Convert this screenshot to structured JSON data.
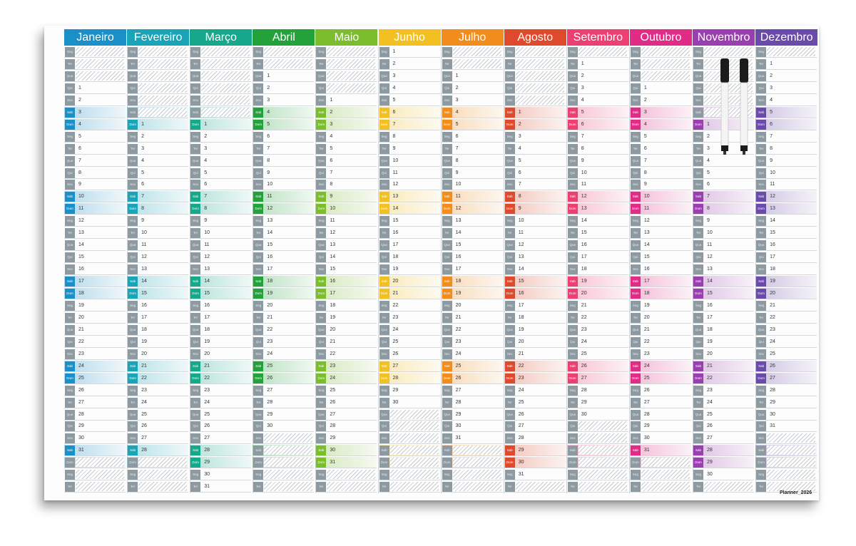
{
  "months": [
    {
      "name": "Janeiro",
      "color": "#1a8fc8",
      "first_wd": 3,
      "days": 31
    },
    {
      "name": "Fevereiro",
      "color": "#1aa4b8",
      "first_wd": 6,
      "days": 28
    },
    {
      "name": "Março",
      "color": "#16a88a",
      "first_wd": 6,
      "days": 31
    },
    {
      "name": "Abril",
      "color": "#23a23c",
      "first_wd": 2,
      "days": 30
    },
    {
      "name": "Maio",
      "color": "#7cbd2e",
      "first_wd": 4,
      "days": 31
    },
    {
      "name": "Junho",
      "color": "#f2c020",
      "first_wd": 0,
      "days": 30
    },
    {
      "name": "Julho",
      "color": "#f28c1a",
      "first_wd": 2,
      "days": 31
    },
    {
      "name": "Agosto",
      "color": "#e04a2c",
      "first_wd": 5,
      "days": 31
    },
    {
      "name": "Setembro",
      "color": "#ee3f72",
      "first_wd": 1,
      "days": 30
    },
    {
      "name": "Outubro",
      "color": "#e02c86",
      "first_wd": 3,
      "days": 31
    },
    {
      "name": "Novembro",
      "color": "#9a3fb0",
      "first_wd": 6,
      "days": 30
    },
    {
      "name": "Dezembro",
      "color": "#6a4aaa",
      "first_wd": 1,
      "days": 31
    }
  ],
  "weekdays": [
    "Seg",
    "Ter",
    "Qua",
    "Qui",
    "Sex",
    "Sab",
    "Dom"
  ],
  "brand": "Planner_2026",
  "icons": {
    "pens": "whiteboard-marker-icon"
  }
}
